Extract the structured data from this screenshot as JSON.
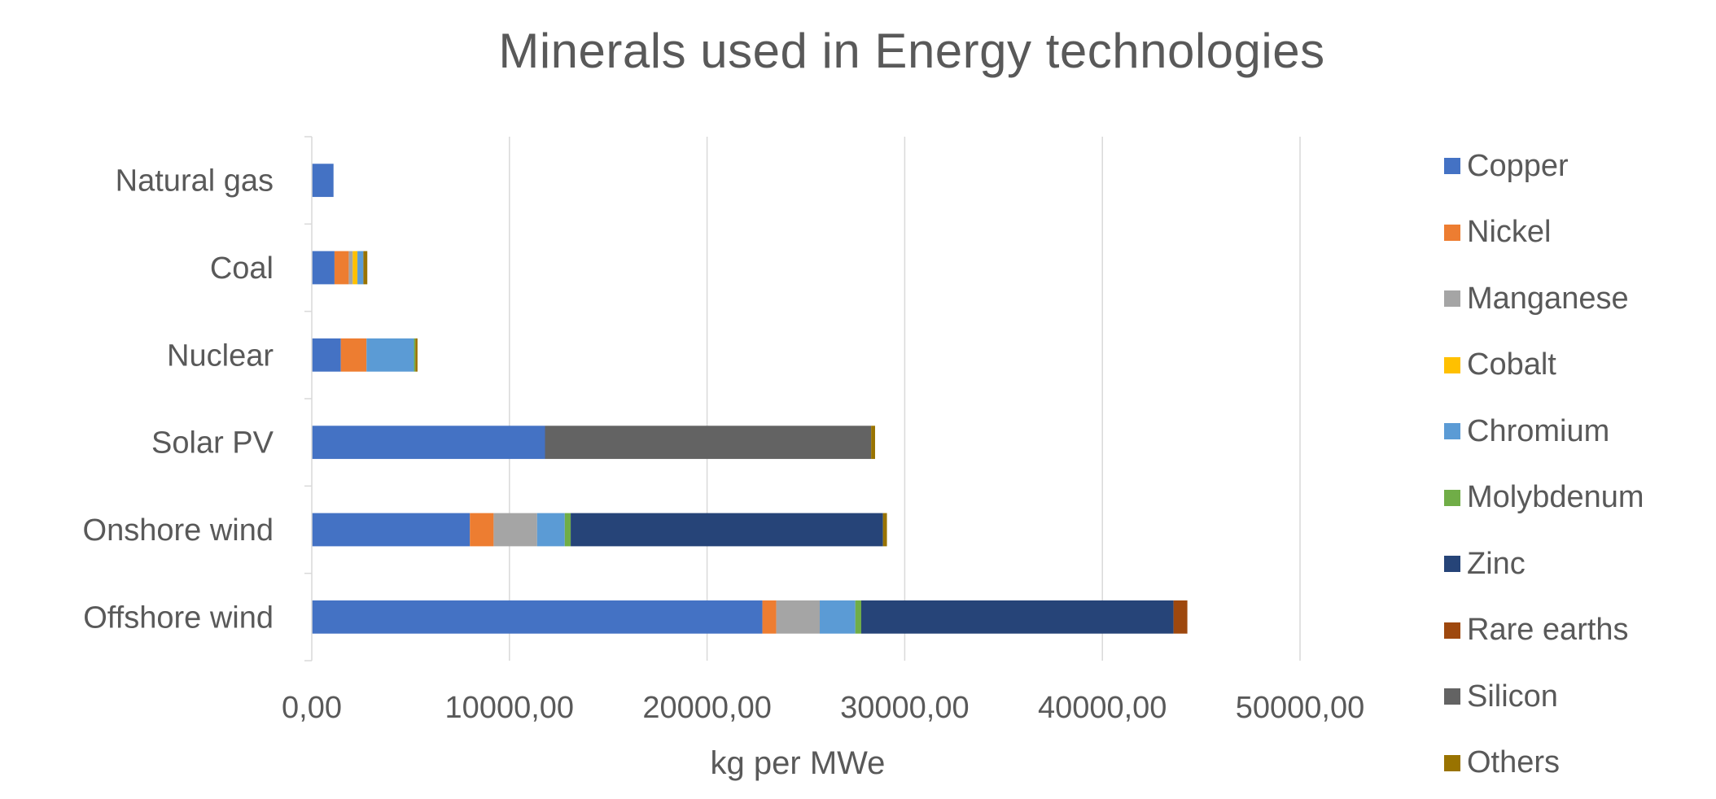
{
  "chart_data": {
    "type": "bar",
    "orientation": "horizontal",
    "stacked": true,
    "title": "Minerals used in Energy technologies",
    "xlabel": "kg per MWe",
    "ylabel": "",
    "xlim": [
      0,
      50000
    ],
    "x_ticks": [
      "0,00",
      "10000,00",
      "20000,00",
      "30000,00",
      "40000,00",
      "50000,00"
    ],
    "grid": "vertical",
    "legend_position": "right",
    "categories": [
      "Natural gas",
      "Coal",
      "Nuclear",
      "Solar PV",
      "Onshore wind",
      "Offshore wind"
    ],
    "series": [
      {
        "name": "Copper",
        "color": "#4472C4",
        "values": [
          1100,
          1150,
          1470,
          11800,
          8000,
          22800
        ]
      },
      {
        "name": "Nickel",
        "color": "#ED7D31",
        "values": [
          0,
          720,
          1300,
          0,
          1200,
          700
        ]
      },
      {
        "name": "Manganese",
        "color": "#A5A5A5",
        "values": [
          0,
          200,
          0,
          0,
          2200,
          2200
        ]
      },
      {
        "name": "Cobalt",
        "color": "#FFC000",
        "values": [
          0,
          240,
          0,
          0,
          0,
          0
        ]
      },
      {
        "name": "Chromium",
        "color": "#5B9BD5",
        "values": [
          0,
          300,
          2400,
          0,
          1400,
          1800
        ]
      },
      {
        "name": "Molybdenum",
        "color": "#70AD47",
        "values": [
          0,
          0,
          70,
          0,
          300,
          300
        ]
      },
      {
        "name": "Zinc",
        "color": "#264478",
        "values": [
          0,
          0,
          0,
          0,
          15800,
          15800
        ]
      },
      {
        "name": "Rare earths",
        "color": "#9E480E",
        "values": [
          0,
          0,
          0,
          0,
          0,
          700
        ]
      },
      {
        "name": "Silicon",
        "color": "#636363",
        "values": [
          0,
          0,
          0,
          16500,
          0,
          0
        ]
      },
      {
        "name": "Others",
        "color": "#997300",
        "values": [
          0,
          200,
          110,
          200,
          200,
          0
        ]
      }
    ]
  }
}
